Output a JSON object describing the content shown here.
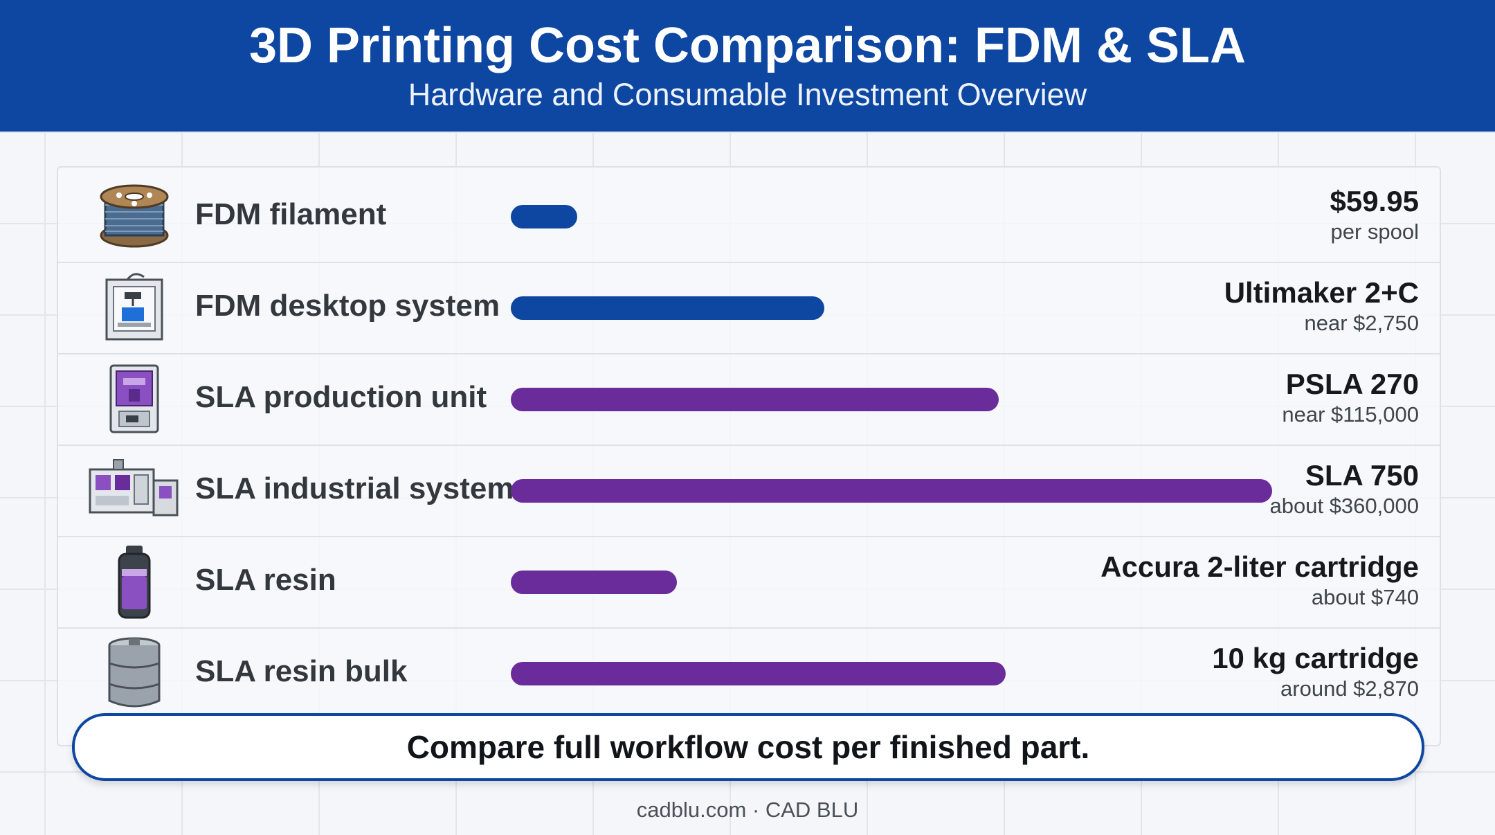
{
  "header": {
    "title": "3D Printing Cost Comparison: FDM & SLA",
    "subtitle": "Hardware and Consumable Investment Overview"
  },
  "colors": {
    "header_bg": "#0d47a1",
    "fdm_bar": "#0d47a1",
    "sla_bar": "#6a2c9b"
  },
  "chart_data": {
    "type": "bar",
    "orientation": "horizontal",
    "axis_scale": "not printed (relative bar lengths, estimated)",
    "categories": [
      "FDM filament",
      "FDM desktop system",
      "SLA production unit",
      "SLA industrial system",
      "SLA resin",
      "SLA resin bulk"
    ],
    "bar_fraction": [
      0.087,
      0.412,
      0.641,
      1.0,
      0.218,
      0.65
    ],
    "rows": [
      {
        "label": "FDM filament",
        "icon": "filament-spool-icon",
        "group": "FDM",
        "bar_fraction": 0.087,
        "value_main": "$59.95",
        "value_sub": "per spool"
      },
      {
        "label": "FDM desktop system",
        "icon": "desktop-3d-printer-icon",
        "group": "FDM",
        "bar_fraction": 0.412,
        "value_main": "Ultimaker 2+C",
        "value_sub": "near $2,750"
      },
      {
        "label": "SLA production unit",
        "icon": "sla-printer-icon",
        "group": "SLA",
        "bar_fraction": 0.641,
        "value_main": "PSLA 270",
        "value_sub": "near $115,000"
      },
      {
        "label": "SLA industrial system",
        "icon": "industrial-printer-icon",
        "group": "SLA",
        "bar_fraction": 1.0,
        "value_main": "SLA 750",
        "value_sub": "about $360,000"
      },
      {
        "label": "SLA resin",
        "icon": "resin-bottle-icon",
        "group": "SLA",
        "bar_fraction": 0.218,
        "value_main": "Accura 2-liter cartridge",
        "value_sub": "about $740"
      },
      {
        "label": "SLA resin bulk",
        "icon": "resin-keg-icon",
        "group": "SLA",
        "bar_fraction": 0.65,
        "value_main": "10 kg cartridge",
        "value_sub": "around $2,870"
      }
    ],
    "grid": true,
    "legend": "none"
  },
  "callout": "Compare full workflow cost per finished part.",
  "footer": "cadblu.com · CAD BLU"
}
